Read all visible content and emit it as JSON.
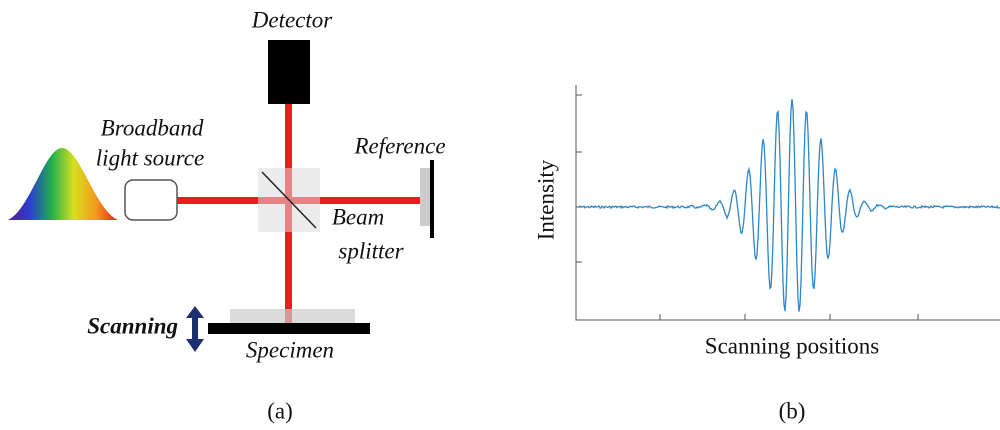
{
  "panel_a": {
    "labels": {
      "detector": "Detector",
      "source_line1": "Broadband",
      "source_line2": "light source",
      "reference": "Reference",
      "splitter_line1": "Beam",
      "splitter_line2": "splitter",
      "scanning": "Scanning",
      "specimen": "Specimen"
    },
    "caption": "(a)"
  },
  "panel_b": {
    "y_label": "Intensity",
    "x_label": "Scanning positions",
    "caption": "(b)"
  }
}
